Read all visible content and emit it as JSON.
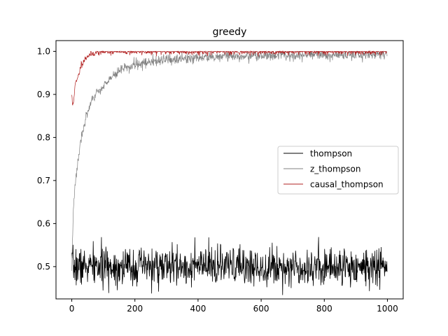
{
  "chart_data": {
    "type": "line",
    "title": "greedy",
    "xlabel": "",
    "ylabel": "",
    "xlim": [
      -50,
      1050
    ],
    "ylim": [
      0.425,
      1.025
    ],
    "xticks": [
      0,
      200,
      400,
      600,
      800,
      1000
    ],
    "yticks": [
      0.5,
      0.6,
      0.7,
      0.8,
      0.9,
      1.0
    ],
    "xtick_labels": [
      "0",
      "200",
      "400",
      "600",
      "800",
      "1000"
    ],
    "ytick_labels": [
      "0.5",
      "0.6",
      "0.7",
      "0.8",
      "0.9",
      "1.0"
    ],
    "grid": false,
    "legend_position": "center-right",
    "n_points": 1000,
    "series": [
      {
        "name": "thompson",
        "color": "#000000",
        "style": "noisy",
        "mean": 0.5,
        "noise": 0.022,
        "seed": 7,
        "anchors_x": [
          0,
          1000
        ],
        "anchors_y": [
          0.5,
          0.5
        ]
      },
      {
        "name": "z_thompson",
        "color": "#808080",
        "style": "noisy",
        "noise": 0.006,
        "seed": 3,
        "anchors_x": [
          0,
          5,
          10,
          20,
          30,
          50,
          75,
          100,
          150,
          200,
          300,
          400,
          500,
          600,
          800,
          1000
        ],
        "anchors_y": [
          0.5,
          0.63,
          0.69,
          0.75,
          0.8,
          0.86,
          0.9,
          0.92,
          0.955,
          0.97,
          0.98,
          0.985,
          0.988,
          0.99,
          0.992,
          0.993
        ]
      },
      {
        "name": "causal_thompson",
        "color": "#b22222",
        "style": "noisy",
        "noise": 0.004,
        "seed": 11,
        "anchors_x": [
          0,
          2,
          5,
          10,
          20,
          30,
          50,
          75,
          100,
          150,
          1000
        ],
        "anchors_y": [
          0.9,
          0.875,
          0.88,
          0.92,
          0.94,
          0.97,
          0.99,
          0.997,
          1.0,
          1.0,
          1.0
        ]
      }
    ]
  }
}
